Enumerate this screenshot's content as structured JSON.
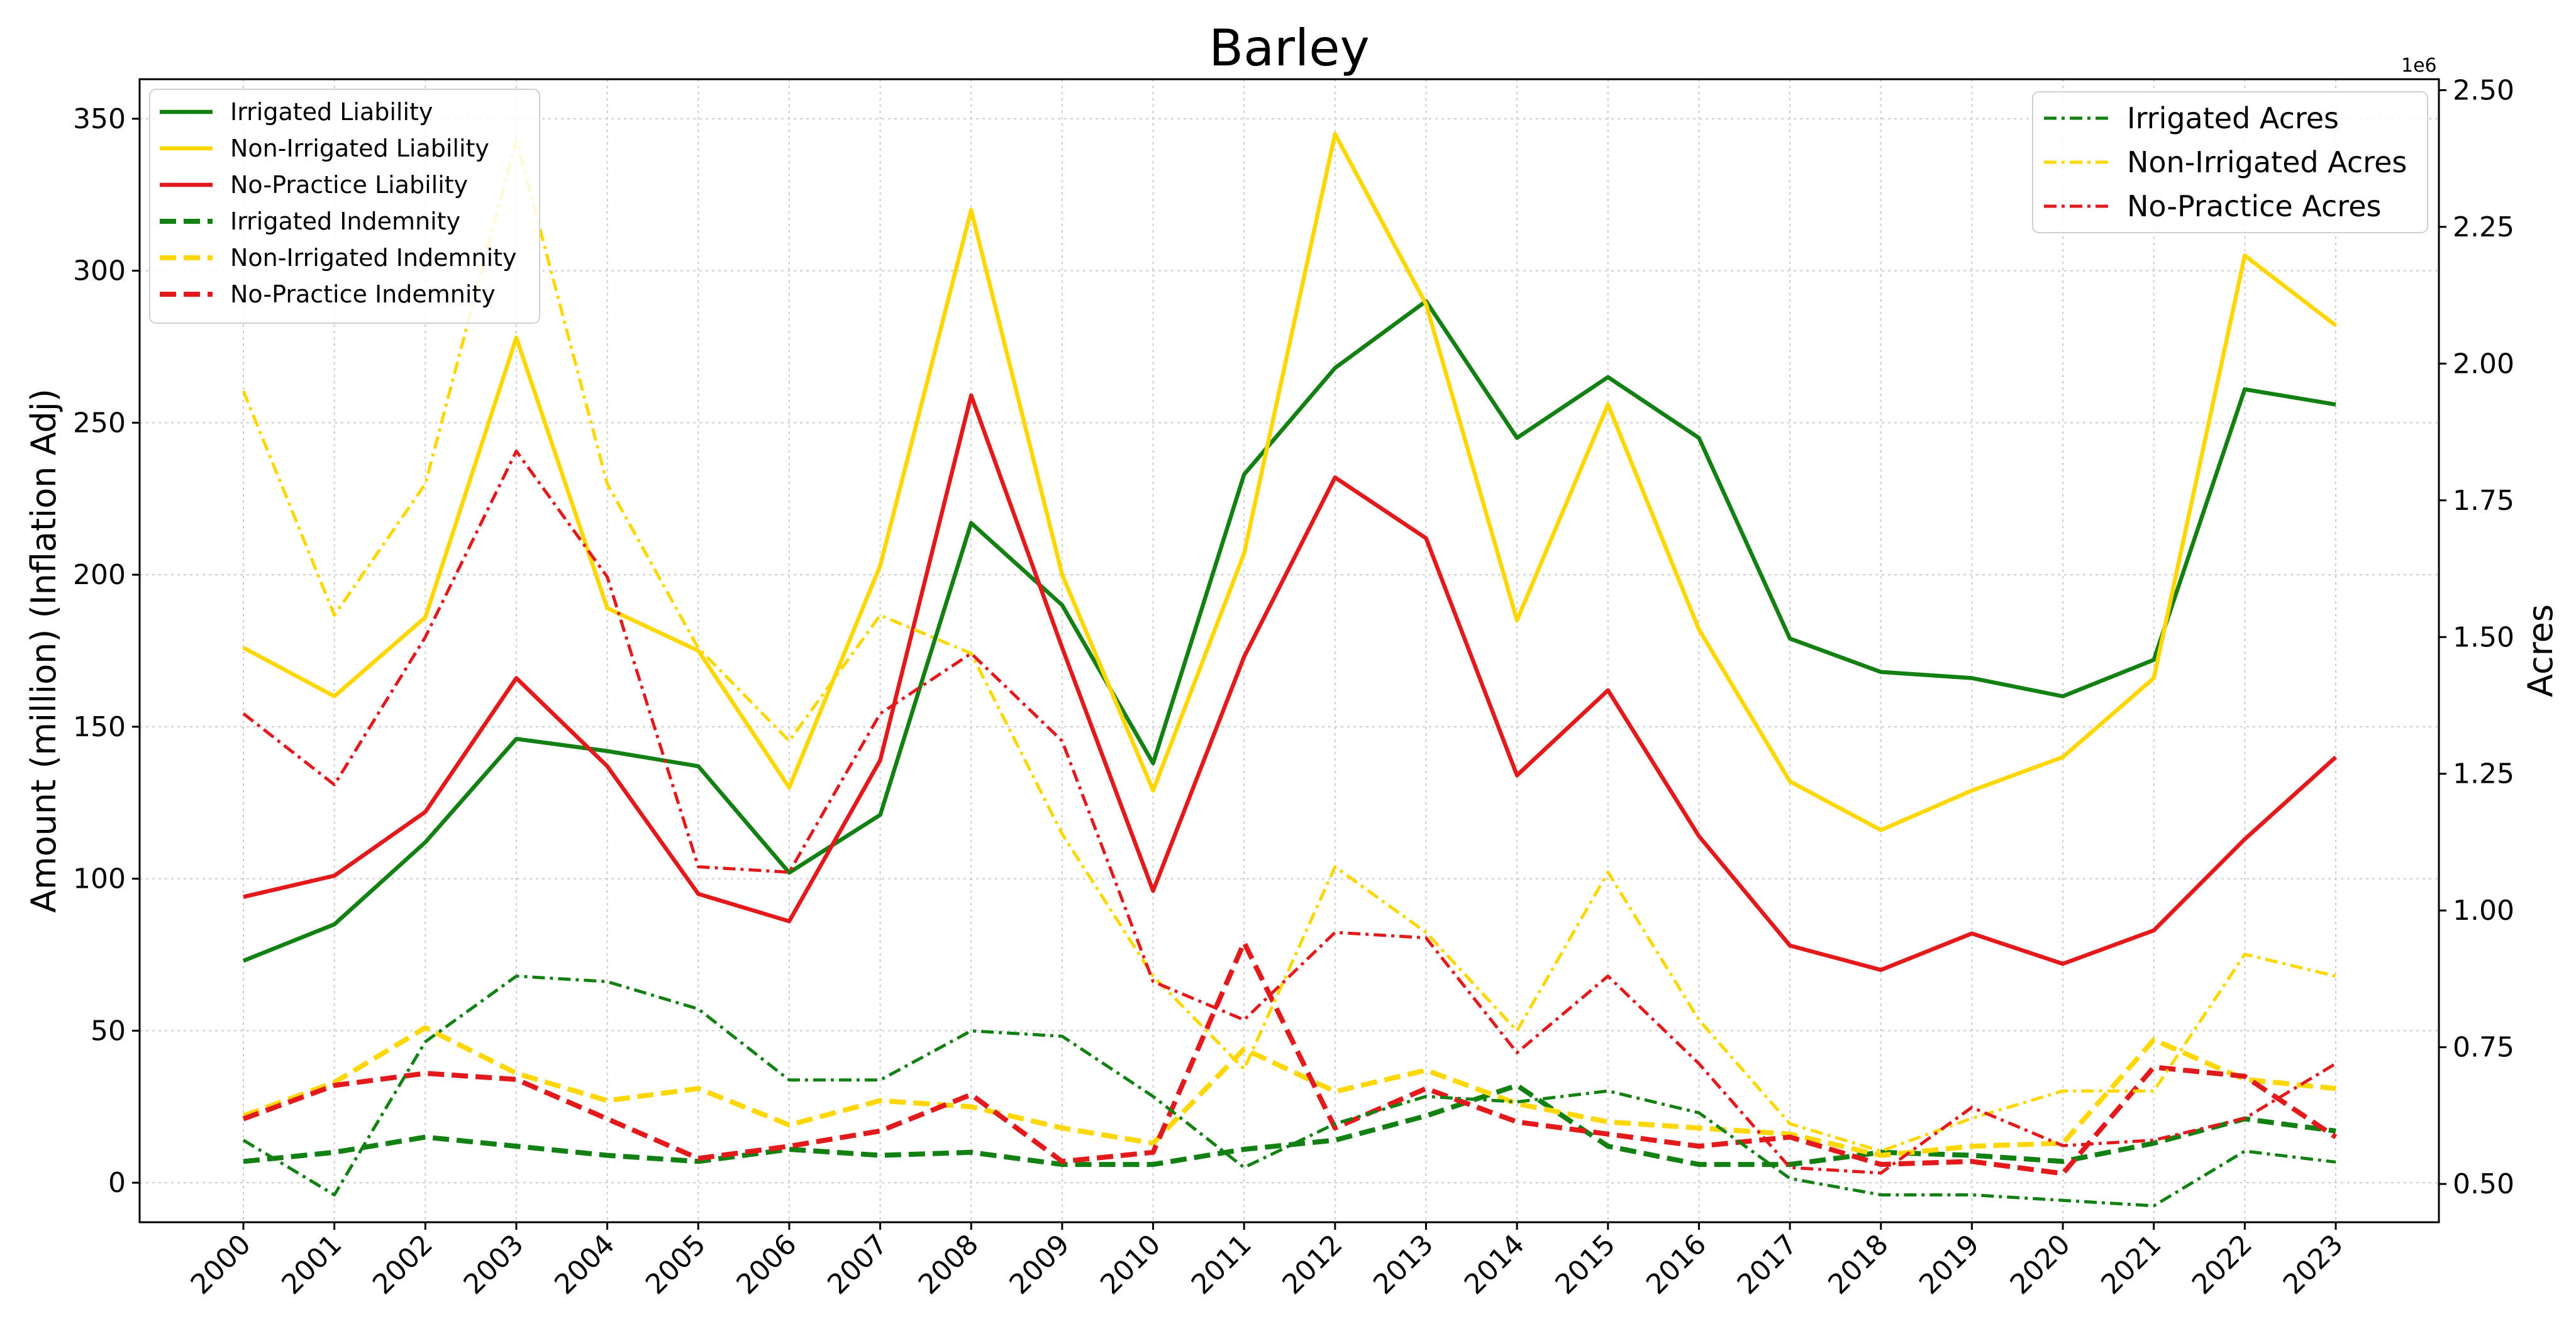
{
  "chart_data": {
    "type": "line",
    "title": "Barley",
    "xlabel": "",
    "ylabel": "Amount (million) (Inflation Adj)",
    "y2label": "Acres",
    "y2_offset_label": "1e6",
    "categories": [
      "2000",
      "2001",
      "2002",
      "2003",
      "2004",
      "2005",
      "2006",
      "2007",
      "2008",
      "2009",
      "2010",
      "2011",
      "2012",
      "2013",
      "2014",
      "2015",
      "2016",
      "2017",
      "2018",
      "2019",
      "2020",
      "2021",
      "2022",
      "2023"
    ],
    "ylim": [
      -13,
      363
    ],
    "yticks": [
      "0",
      "50",
      "100",
      "150",
      "200",
      "250",
      "300",
      "350"
    ],
    "y2lim": [
      0.43,
      2.52
    ],
    "y2ticks": [
      "0.50",
      "0.75",
      "1.00",
      "1.25",
      "1.50",
      "1.75",
      "2.00",
      "2.25",
      "2.50"
    ],
    "grid": true,
    "legend_left_placement": "upper-left",
    "legend_right_placement": "upper-right",
    "series": [
      {
        "name": "Irrigated Liability",
        "axis": "left",
        "color": "#138013",
        "style": "solid",
        "values": [
          73,
          85,
          112,
          146,
          142,
          137,
          102,
          121,
          217,
          190,
          138,
          233,
          268,
          290,
          245,
          265,
          245,
          179,
          168,
          166,
          160,
          172,
          261,
          256
        ]
      },
      {
        "name": "Non-Irrigated Liability",
        "axis": "left",
        "color": "#FFD700",
        "style": "solid",
        "values": [
          176,
          160,
          186,
          278,
          189,
          175,
          130,
          203,
          320,
          200,
          129,
          207,
          345,
          289,
          185,
          256,
          182,
          132,
          116,
          129,
          140,
          166,
          305,
          282
        ]
      },
      {
        "name": "No-Practice Liability",
        "axis": "left",
        "color": "#E31A1C",
        "style": "solid",
        "values": [
          94,
          101,
          122,
          166,
          137,
          95,
          86,
          139,
          259,
          176,
          96,
          173,
          232,
          212,
          134,
          162,
          114,
          78,
          70,
          82,
          72,
          83,
          113,
          140
        ]
      },
      {
        "name": "Irrigated Indemnity",
        "axis": "left",
        "color": "#138013",
        "style": "dashed",
        "values": [
          7,
          10,
          15,
          12,
          9,
          7,
          11,
          9,
          10,
          6,
          6,
          11,
          14,
          22,
          32,
          12,
          6,
          6,
          10,
          9,
          7,
          13,
          21,
          17
        ]
      },
      {
        "name": "Non-Irrigated Indemnity",
        "axis": "left",
        "color": "#FFD700",
        "style": "dashed",
        "values": [
          22,
          33,
          51,
          36,
          27,
          31,
          19,
          27,
          25,
          18,
          13,
          44,
          30,
          37,
          26,
          20,
          18,
          16,
          9,
          12,
          13,
          47,
          34,
          31
        ]
      },
      {
        "name": "No-Practice Indemnity",
        "axis": "left",
        "color": "#E31A1C",
        "style": "dashed",
        "values": [
          21,
          32,
          36,
          34,
          21,
          8,
          12,
          17,
          29,
          7,
          10,
          79,
          18,
          31,
          20,
          16,
          12,
          15,
          6,
          7,
          3,
          38,
          35,
          15
        ]
      },
      {
        "name": "Irrigated Acres",
        "axis": "right",
        "color": "#138013",
        "style": "dashdot",
        "values": [
          0.58,
          0.48,
          0.76,
          0.88,
          0.87,
          0.82,
          0.69,
          0.69,
          0.78,
          0.77,
          0.66,
          0.53,
          0.61,
          0.66,
          0.65,
          0.67,
          0.63,
          0.51,
          0.48,
          0.48,
          0.47,
          0.46,
          0.56,
          0.54
        ]
      },
      {
        "name": "Non-Irrigated Acres",
        "axis": "right",
        "color": "#FFD700",
        "style": "dashdot",
        "values": [
          1.95,
          1.54,
          1.78,
          2.41,
          1.78,
          1.48,
          1.31,
          1.54,
          1.47,
          1.14,
          0.88,
          0.71,
          1.08,
          0.96,
          0.78,
          1.07,
          0.8,
          0.61,
          0.56,
          0.62,
          0.67,
          0.67,
          0.92,
          0.88
        ]
      },
      {
        "name": "No-Practice Acres",
        "axis": "right",
        "color": "#E31A1C",
        "style": "dashdot",
        "values": [
          1.36,
          1.23,
          1.5,
          1.84,
          1.61,
          1.08,
          1.07,
          1.36,
          1.47,
          1.31,
          0.87,
          0.8,
          0.96,
          0.95,
          0.74,
          0.88,
          0.72,
          0.53,
          0.52,
          0.64,
          0.57,
          0.58,
          0.62,
          0.72
        ]
      }
    ]
  }
}
